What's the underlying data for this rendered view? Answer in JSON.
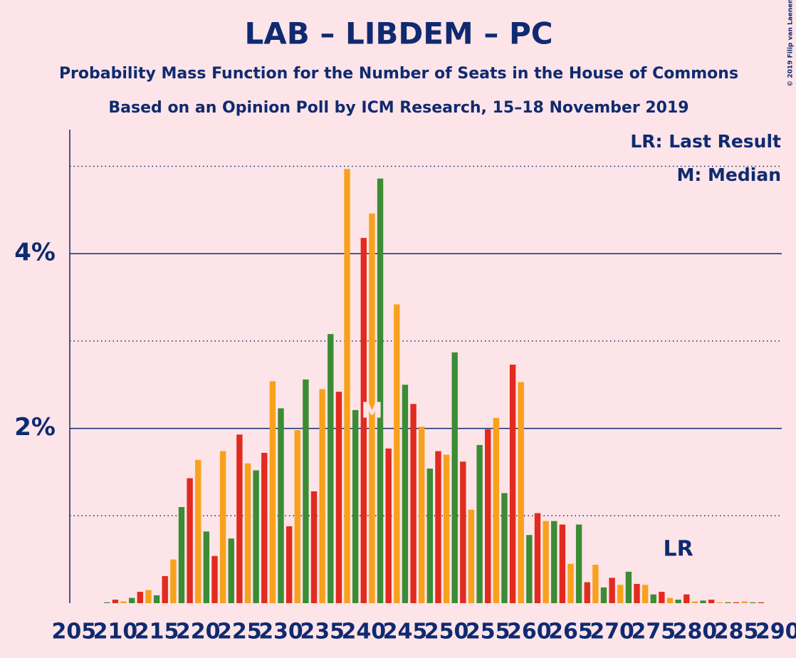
{
  "chart_data": {
    "type": "bar",
    "title": "LAB – LIBDEM – PC",
    "subtitle": "Probability Mass Function for the Number of Seats in the House of Commons",
    "subtitle2": "Based on an Opinion Poll by ICM Research, 15–18 November 2019",
    "copyright": "© 2019 Filip van Laenen",
    "x": [
      205,
      206,
      207,
      208,
      209,
      210,
      211,
      212,
      213,
      214,
      215,
      216,
      217,
      218,
      219,
      220,
      221,
      222,
      223,
      224,
      225,
      226,
      227,
      228,
      229,
      230,
      231,
      232,
      233,
      234,
      235,
      236,
      237,
      238,
      239,
      240,
      241,
      242,
      243,
      244,
      245,
      246,
      247,
      248,
      249,
      250,
      251,
      252,
      253,
      254,
      255,
      256,
      257,
      258,
      259,
      260,
      261,
      262,
      263,
      264,
      265,
      266,
      267,
      268,
      269,
      270,
      271,
      272,
      273,
      274,
      275,
      276,
      277,
      278,
      279,
      280,
      281,
      282,
      283,
      284,
      285,
      286,
      287,
      288,
      289,
      290
    ],
    "values": [
      0,
      0,
      0,
      0,
      0.01,
      0.04,
      0.02,
      0.06,
      0.13,
      0.15,
      0.09,
      0.31,
      0.5,
      1.1,
      1.43,
      1.64,
      0.82,
      0.54,
      1.74,
      0.74,
      1.93,
      1.6,
      1.52,
      1.72,
      2.54,
      2.23,
      0.88,
      1.98,
      2.56,
      1.28,
      2.45,
      3.08,
      2.42,
      4.97,
      2.21,
      4.18,
      4.46,
      4.86,
      1.77,
      3.42,
      2.5,
      2.28,
      2.02,
      1.54,
      1.74,
      1.7,
      2.87,
      1.62,
      1.07,
      1.81,
      1.99,
      2.12,
      1.26,
      2.73,
      2.53,
      0.78,
      1.03,
      0.94,
      0.94,
      0.9,
      0.45,
      0.9,
      0.24,
      0.44,
      0.18,
      0.29,
      0.21,
      0.36,
      0.22,
      0.21,
      0.1,
      0.13,
      0.06,
      0.04,
      0.1,
      0.02,
      0.03,
      0.04,
      0.01,
      0.01,
      0.01,
      0.02,
      0.01,
      0.01,
      0,
      0
    ],
    "color_cycle": [
      "#f8a11c",
      "#3b8c34",
      "#e22a1e"
    ],
    "xlim": [
      204.5,
      290.5
    ],
    "xticks": [
      205,
      210,
      215,
      220,
      225,
      230,
      235,
      240,
      245,
      250,
      255,
      260,
      265,
      270,
      275,
      280,
      285,
      290
    ],
    "ylim": [
      0,
      5.42
    ],
    "yticks": [
      {
        "value": 2,
        "label": "2%"
      },
      {
        "value": 4,
        "label": "4%"
      }
    ],
    "minor_yticks": [
      1,
      3,
      5
    ],
    "legend": [
      "LR: Last Result",
      "M: Median"
    ],
    "median": {
      "x": 241,
      "label": "M"
    },
    "last_result": {
      "x": 278,
      "label": "LR"
    }
  }
}
